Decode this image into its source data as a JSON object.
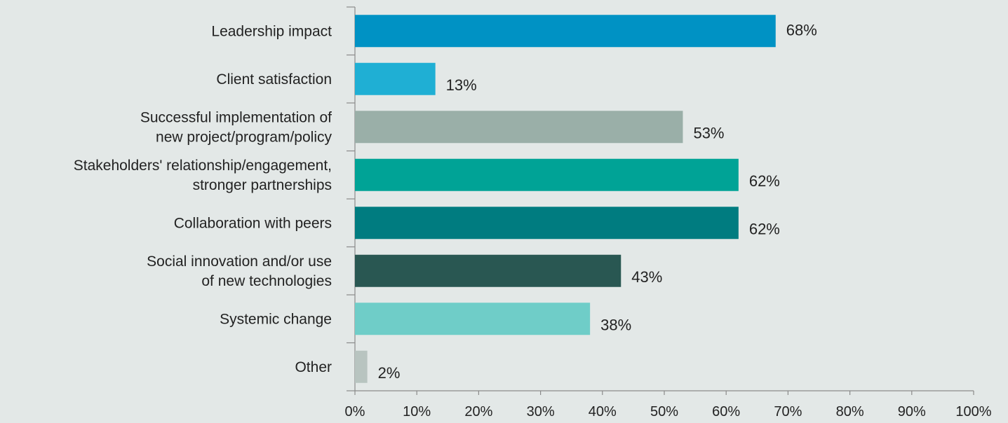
{
  "chart_data": {
    "type": "bar",
    "orientation": "horizontal",
    "categories": [
      [
        "Leadership impact"
      ],
      [
        "Client satisfaction"
      ],
      [
        "Successful implementation of",
        "new project/program/policy"
      ],
      [
        "Stakeholders' relationship/engagement,",
        "stronger partnerships"
      ],
      [
        "Collaboration with peers"
      ],
      [
        "Social innovation and/or use",
        "of new technologies"
      ],
      [
        "Systemic change"
      ],
      [
        "Other"
      ]
    ],
    "values": [
      68,
      13,
      53,
      62,
      62,
      43,
      38,
      2
    ],
    "value_labels": [
      "68%",
      "13%",
      "53%",
      "62%",
      "62%",
      "43%",
      "38%",
      "2%"
    ],
    "colors": [
      "#0092C4",
      "#1FAFD4",
      "#9AAFA8",
      "#00A396",
      "#007C80",
      "#295752",
      "#6FCDC8",
      "#B8C4C0"
    ],
    "xlim": [
      0,
      100
    ],
    "x_ticks": [
      0,
      10,
      20,
      30,
      40,
      50,
      60,
      70,
      80,
      90,
      100
    ],
    "x_tick_labels": [
      "0%",
      "10%",
      "20%",
      "30%",
      "40%",
      "50%",
      "60%",
      "70%",
      "80%",
      "90%",
      "100%"
    ],
    "title": "",
    "xlabel": "",
    "ylabel": "",
    "grid": false,
    "legend": "none"
  }
}
